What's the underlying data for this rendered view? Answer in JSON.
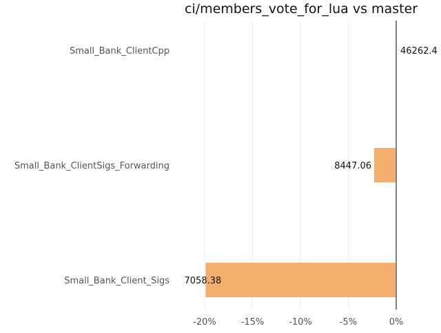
{
  "chart_data": {
    "type": "bar",
    "orientation": "horizontal",
    "title": "ci/members_vote_for_lua vs master",
    "xlabel": "",
    "ylabel": "",
    "categories": [
      "Small_Bank_ClientCpp",
      "Small_Bank_ClientSigs_Forwarding",
      "Small_Bank_Client_Sigs"
    ],
    "values": [
      0.0,
      -2.3,
      -19.9
    ],
    "value_unit": "%",
    "data_labels": [
      "46262.4",
      "8447.06",
      "7058.38"
    ],
    "xlim": [
      -20.0,
      0.0
    ],
    "xticks": [
      -20,
      -15,
      -10,
      -5,
      0
    ],
    "xtick_labels": [
      "-20%",
      "-15%",
      "-10%",
      "-5%",
      "0%"
    ],
    "grid": "vertical",
    "legend": "none",
    "bar_color": "#f4ae6e",
    "zero_line_color": "#808080"
  }
}
